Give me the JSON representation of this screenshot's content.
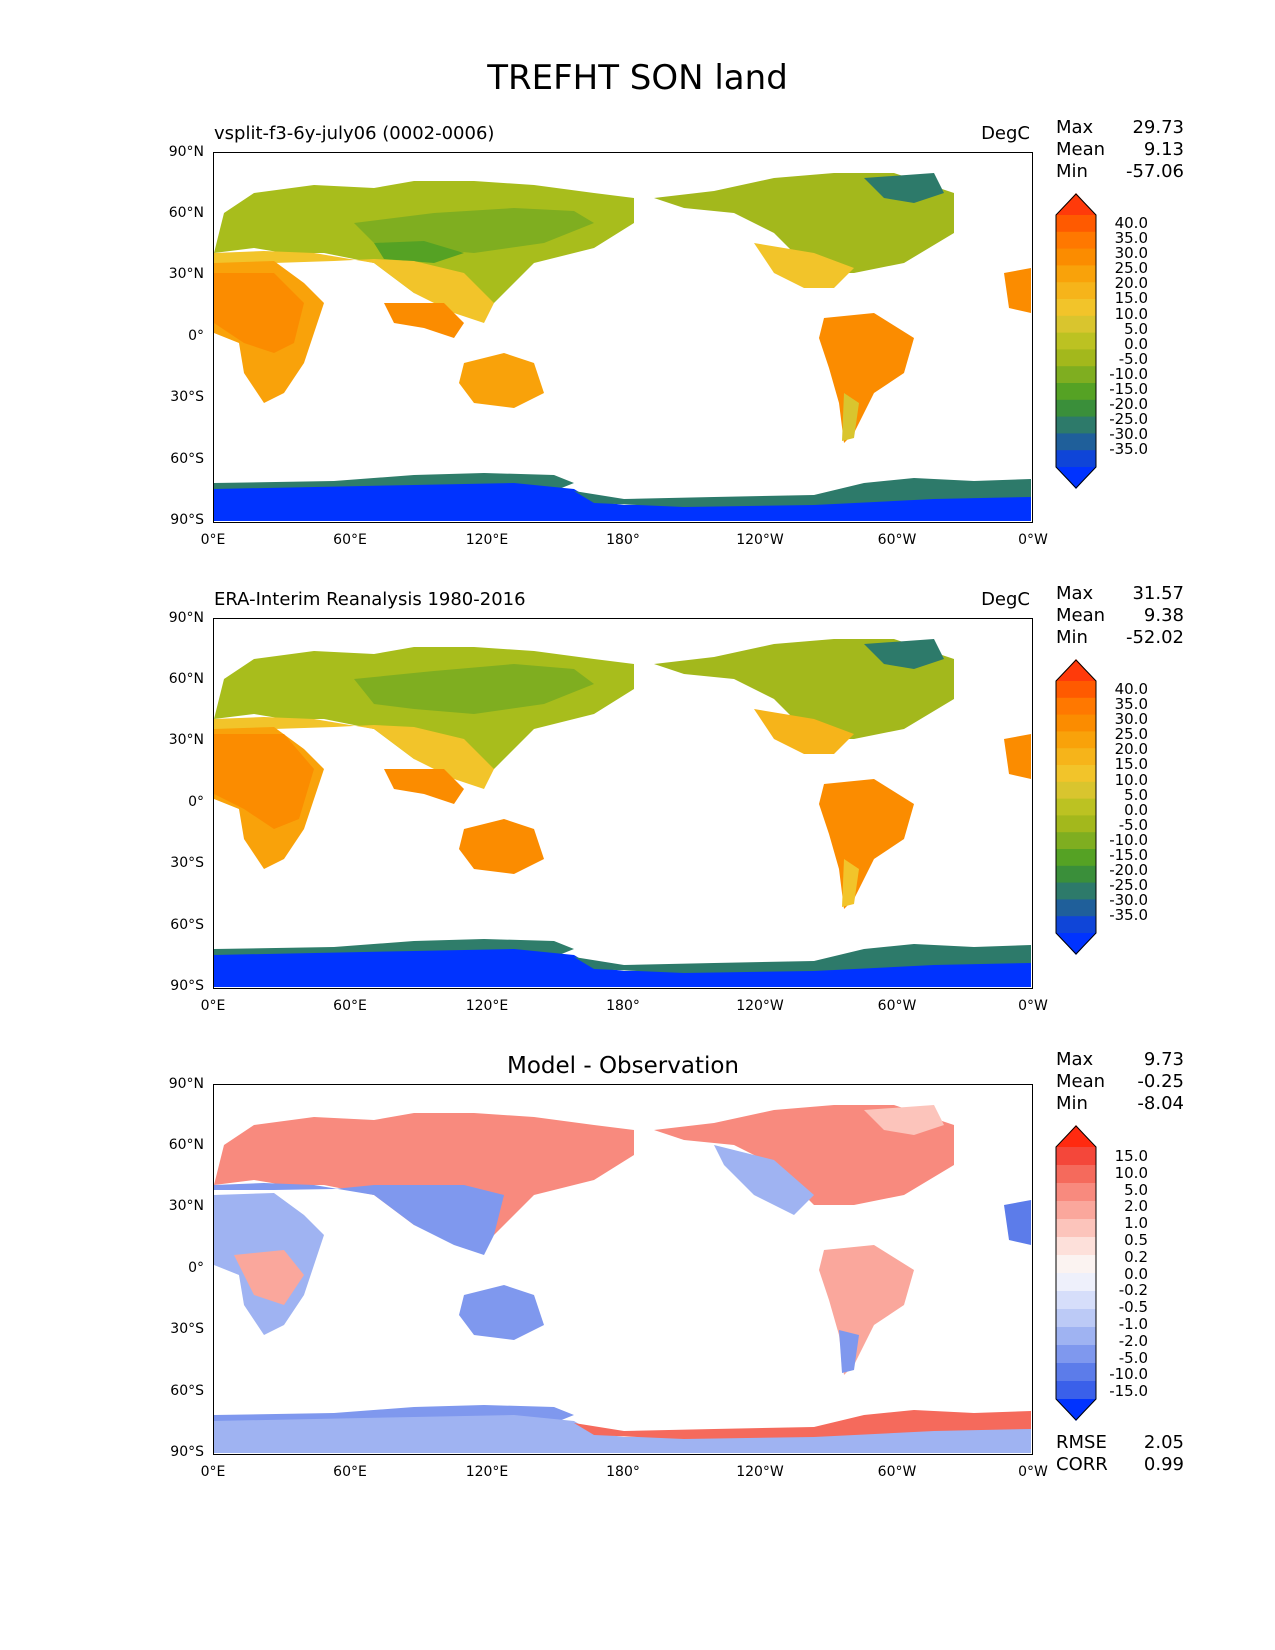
{
  "figure_title": "TREFHT SON land",
  "x_ticks": [
    "0°E",
    "60°E",
    "120°E",
    "180°",
    "120°W",
    "60°W",
    "0°W"
  ],
  "y_ticks": [
    "90°N",
    "60°N",
    "30°N",
    "0°",
    "30°S",
    "60°S",
    "90°S"
  ],
  "panels": [
    {
      "id": "test",
      "title": "vsplit-f3-6y-july06 (0002-0006)",
      "units": "DegC",
      "stats": {
        "max_label": "Max",
        "max": "29.73",
        "mean_label": "Mean",
        "mean": "9.13",
        "min_label": "Min",
        "min": "-57.06"
      },
      "colorbar_levels": [
        "40.0",
        "35.0",
        "30.0",
        "25.0",
        "20.0",
        "15.0",
        "10.0",
        "5.0",
        "0.0",
        "-5.0",
        "-10.0",
        "-15.0",
        "-20.0",
        "-25.0",
        "-30.0",
        "-35.0"
      ],
      "colorbar_colors": [
        "#ff3a0a",
        "#ff5a00",
        "#ff7800",
        "#fb8c00",
        "#f9a20a",
        "#f6b41a",
        "#f2c42a",
        "#d9c52e",
        "#bcc222",
        "#a3b81c",
        "#7fae20",
        "#55a224",
        "#3a8f3a",
        "#2d7a6a",
        "#1f5f9a",
        "#0f45d8",
        "#0033ff"
      ]
    },
    {
      "id": "reference",
      "title": "ERA-Interim Reanalysis 1980-2016",
      "units": "DegC",
      "stats": {
        "max_label": "Max",
        "max": "31.57",
        "mean_label": "Mean",
        "mean": "9.38",
        "min_label": "Min",
        "min": "-52.02"
      },
      "colorbar_levels": [
        "40.0",
        "35.0",
        "30.0",
        "25.0",
        "20.0",
        "15.0",
        "10.0",
        "5.0",
        "0.0",
        "-5.0",
        "-10.0",
        "-15.0",
        "-20.0",
        "-25.0",
        "-30.0",
        "-35.0"
      ],
      "colorbar_colors": [
        "#ff3a0a",
        "#ff5a00",
        "#ff7800",
        "#fb8c00",
        "#f9a20a",
        "#f6b41a",
        "#f2c42a",
        "#d9c52e",
        "#bcc222",
        "#a3b81c",
        "#7fae20",
        "#55a224",
        "#3a8f3a",
        "#2d7a6a",
        "#1f5f9a",
        "#0f45d8",
        "#0033ff"
      ]
    },
    {
      "id": "diff",
      "title": "Model - Observation",
      "units": "",
      "stats": {
        "max_label": "Max",
        "max": "9.73",
        "mean_label": "Mean",
        "mean": "-0.25",
        "min_label": "Min",
        "min": "-8.04"
      },
      "colorbar_levels": [
        "15.0",
        "10.0",
        "5.0",
        "2.0",
        "1.0",
        "0.5",
        "0.2",
        "0.0",
        "-0.2",
        "-0.5",
        "-1.0",
        "-2.0",
        "-5.0",
        "-10.0",
        "-15.0"
      ],
      "colorbar_colors": [
        "#ff2a10",
        "#f4473a",
        "#f56a5c",
        "#f88a7e",
        "#faa79c",
        "#fcc4bb",
        "#fde0da",
        "#fbf3f1",
        "#eef0fb",
        "#d6defa",
        "#bccaf6",
        "#9fb3f2",
        "#7f98ee",
        "#5c7cea",
        "#3a60ea",
        "#0033ff"
      ],
      "metrics": {
        "rmse_label": "RMSE",
        "rmse": "2.05",
        "corr_label": "CORR",
        "corr": "0.99"
      }
    }
  ]
}
